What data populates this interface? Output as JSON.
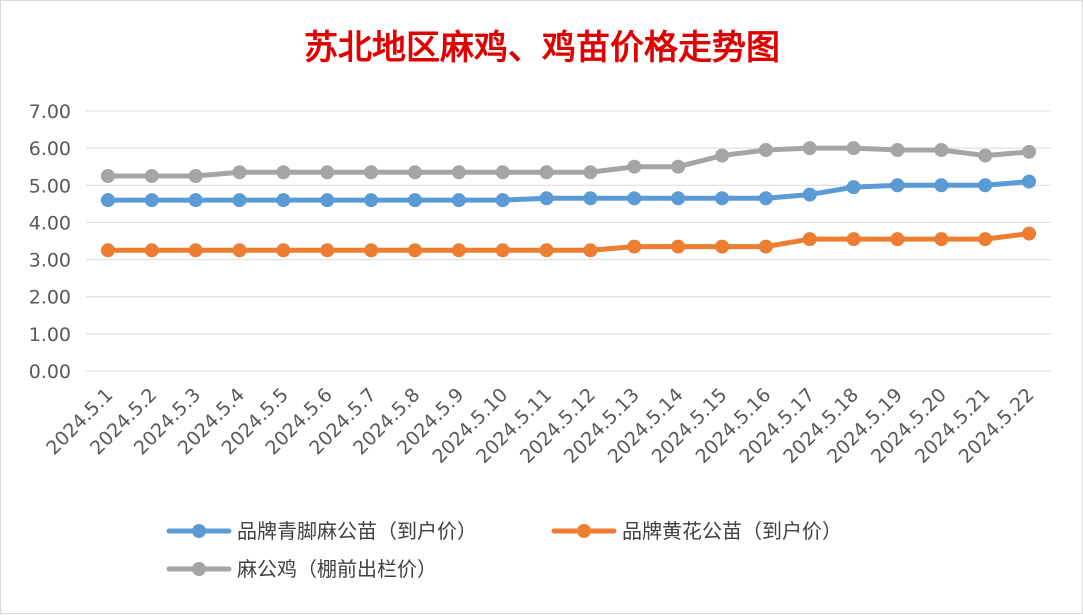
{
  "chart_data": {
    "type": "line",
    "title": "苏北地区麻鸡、鸡苗价格走势图",
    "xlabel": "",
    "ylabel": "",
    "ylim": [
      0,
      7
    ],
    "y_ticks": [
      "0.00",
      "1.00",
      "2.00",
      "3.00",
      "4.00",
      "5.00",
      "6.00",
      "7.00"
    ],
    "grid": true,
    "legend_position": "bottom",
    "categories": [
      "2024.5.1",
      "2024.5.2",
      "2024.5.3",
      "2024.5.4",
      "2024.5.5",
      "2024.5.6",
      "2024.5.7",
      "2024.5.8",
      "2024.5.9",
      "2024.5.10",
      "2024.5.11",
      "2024.5.12",
      "2024.5.13",
      "2024.5.14",
      "2024.5.15",
      "2024.5.16",
      "2024.5.17",
      "2024.5.18",
      "2024.5.19",
      "2024.5.20",
      "2024.5.21",
      "2024.5.22"
    ],
    "series": [
      {
        "name": "品牌青脚麻公苗（到户价）",
        "color": "#5b9bd5",
        "values": [
          4.6,
          4.6,
          4.6,
          4.6,
          4.6,
          4.6,
          4.6,
          4.6,
          4.6,
          4.6,
          4.65,
          4.65,
          4.65,
          4.65,
          4.65,
          4.65,
          4.75,
          4.95,
          5.0,
          5.0,
          5.0,
          5.1
        ]
      },
      {
        "name": "品牌黄花公苗（到户价）",
        "color": "#ed7d31",
        "values": [
          3.25,
          3.25,
          3.25,
          3.25,
          3.25,
          3.25,
          3.25,
          3.25,
          3.25,
          3.25,
          3.25,
          3.25,
          3.35,
          3.35,
          3.35,
          3.35,
          3.55,
          3.55,
          3.55,
          3.55,
          3.55,
          3.7
        ]
      },
      {
        "name": "麻公鸡（棚前出栏价）",
        "color": "#a5a5a5",
        "values": [
          5.25,
          5.25,
          5.25,
          5.35,
          5.35,
          5.35,
          5.35,
          5.35,
          5.35,
          5.35,
          5.35,
          5.35,
          5.5,
          5.5,
          5.8,
          5.95,
          6.0,
          6.0,
          5.95,
          5.95,
          5.8,
          5.9
        ]
      }
    ]
  }
}
